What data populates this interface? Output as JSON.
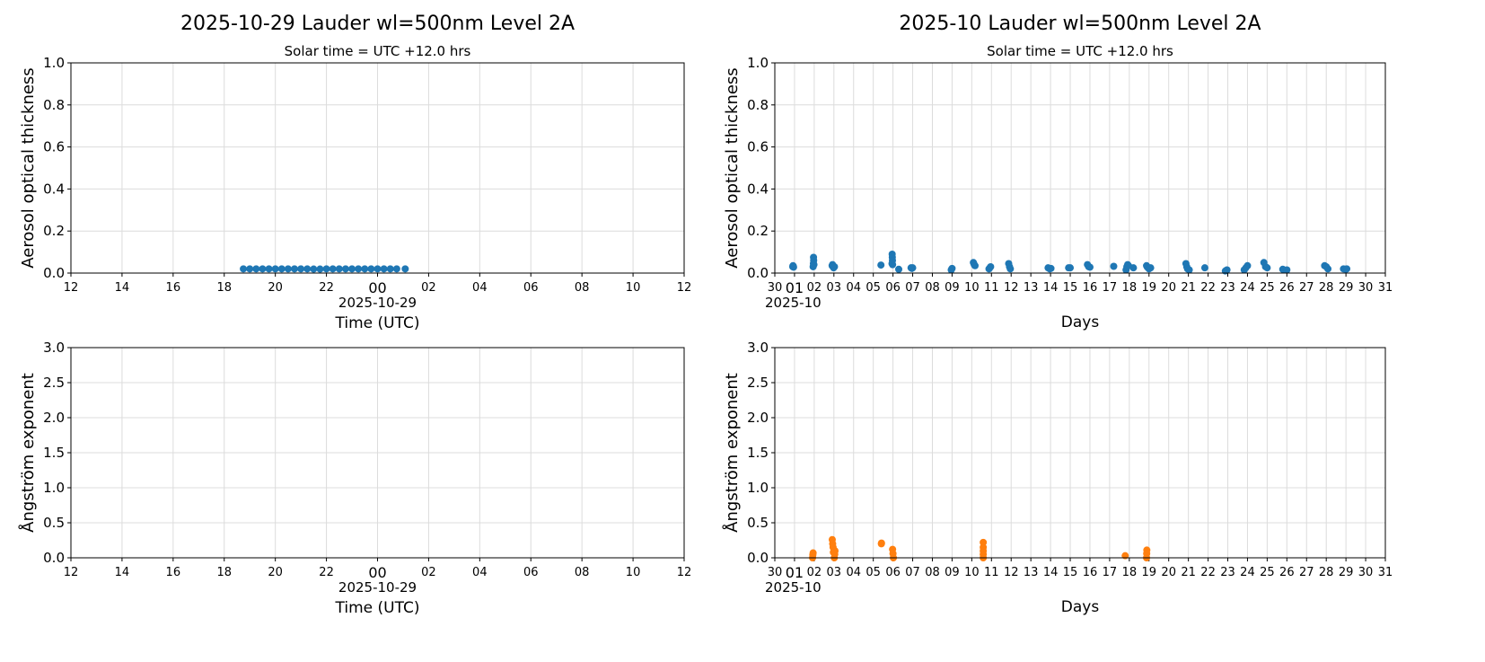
{
  "chart_data": [
    {
      "id": "daily_aot",
      "type": "scatter",
      "title": "2025-10-29  Lauder  wl=500nm  Level 2A",
      "subtitle": "Solar time = UTC +12.0 hrs",
      "xlabel": "Time (UTC)",
      "ylabel": "Aerosol optical thickness",
      "xlim": [
        "2025-10-29T12:00",
        "2025-10-30T12:00"
      ],
      "ylim": [
        0,
        1.0
      ],
      "yticks": [
        "0.0",
        "0.2",
        "0.4",
        "0.6",
        "0.8",
        "1.0"
      ],
      "xticks": [
        "12",
        "14",
        "16",
        "18",
        "20",
        "22",
        "00",
        "02",
        "04",
        "06",
        "08",
        "10",
        "12"
      ],
      "x_offset_label": "2025-10-29",
      "grid": true,
      "color": "#1f77b4",
      "points": [
        [
          "2025-10-29T18:45",
          0.02
        ],
        [
          "2025-10-29T19:00",
          0.02
        ],
        [
          "2025-10-29T19:15",
          0.02
        ],
        [
          "2025-10-29T19:30",
          0.02
        ],
        [
          "2025-10-29T19:45",
          0.02
        ],
        [
          "2025-10-29T20:00",
          0.02
        ],
        [
          "2025-10-29T20:15",
          0.02
        ],
        [
          "2025-10-29T20:30",
          0.02
        ],
        [
          "2025-10-29T20:45",
          0.02
        ],
        [
          "2025-10-29T21:00",
          0.02
        ],
        [
          "2025-10-29T21:15",
          0.02
        ],
        [
          "2025-10-29T21:30",
          0.019
        ],
        [
          "2025-10-29T21:45",
          0.019
        ],
        [
          "2025-10-29T22:00",
          0.02
        ],
        [
          "2025-10-29T22:15",
          0.02
        ],
        [
          "2025-10-29T22:30",
          0.02
        ],
        [
          "2025-10-29T22:45",
          0.02
        ],
        [
          "2025-10-29T23:00",
          0.02
        ],
        [
          "2025-10-29T23:15",
          0.02
        ],
        [
          "2025-10-29T23:30",
          0.02
        ],
        [
          "2025-10-29T23:45",
          0.02
        ],
        [
          "2025-10-30T00:00",
          0.02
        ],
        [
          "2025-10-30T00:15",
          0.02
        ],
        [
          "2025-10-30T00:30",
          0.02
        ],
        [
          "2025-10-30T00:45",
          0.02
        ],
        [
          "2025-10-30T01:05",
          0.02
        ]
      ]
    },
    {
      "id": "monthly_aot",
      "type": "scatter",
      "title": "2025-10  Lauder  wl=500nm  Level 2A",
      "subtitle": "Solar time = UTC +12.0 hrs",
      "xlabel": "Days",
      "ylabel": "Aerosol optical thickness",
      "xlim": [
        "2025-09-30T00:00",
        "2025-10-31T00:00"
      ],
      "ylim": [
        0,
        1.0
      ],
      "yticks": [
        "0.0",
        "0.2",
        "0.4",
        "0.6",
        "0.8",
        "1.0"
      ],
      "xticks": [
        "30",
        "01",
        "02",
        "03",
        "04",
        "05",
        "06",
        "07",
        "08",
        "09",
        "10",
        "11",
        "12",
        "13",
        "14",
        "15",
        "16",
        "17",
        "18",
        "19",
        "20",
        "21",
        "22",
        "23",
        "24",
        "25",
        "26",
        "27",
        "28",
        "29",
        "30",
        "31"
      ],
      "x_offset_label": "2025-10",
      "grid": true,
      "color": "#1f77b4",
      "points": [
        [
          "2025-09-30T21:50",
          0.03
        ],
        [
          "2025-09-30T22:10",
          0.035
        ],
        [
          "2025-09-30T22:30",
          0.032
        ],
        [
          "2025-09-30T22:50",
          0.028
        ],
        [
          "2025-10-01T22:40",
          0.03
        ],
        [
          "2025-10-01T23:00",
          0.045
        ],
        [
          "2025-10-01T23:10",
          0.075
        ],
        [
          "2025-10-01T23:20",
          0.06
        ],
        [
          "2025-10-01T23:40",
          0.04
        ],
        [
          "2025-10-02T21:50",
          0.035
        ],
        [
          "2025-10-02T22:20",
          0.04
        ],
        [
          "2025-10-02T23:00",
          0.03
        ],
        [
          "2025-10-02T23:40",
          0.025
        ],
        [
          "2025-10-03T00:40",
          0.03
        ],
        [
          "2025-10-05T09:20",
          0.038
        ],
        [
          "2025-10-05T22:50",
          0.045
        ],
        [
          "2025-10-05T23:00",
          0.09
        ],
        [
          "2025-10-05T23:10",
          0.075
        ],
        [
          "2025-10-05T23:20",
          0.06
        ],
        [
          "2025-10-05T23:30",
          0.04
        ],
        [
          "2025-10-06T07:00",
          0.018
        ],
        [
          "2025-10-06T22:00",
          0.025
        ],
        [
          "2025-10-06T23:00",
          0.022
        ],
        [
          "2025-10-07T00:00",
          0.025
        ],
        [
          "2025-10-08T23:00",
          0.015
        ],
        [
          "2025-10-09T00:00",
          0.022
        ],
        [
          "2025-10-10T02:00",
          0.05
        ],
        [
          "2025-10-10T03:00",
          0.04
        ],
        [
          "2025-10-10T04:00",
          0.035
        ],
        [
          "2025-10-10T21:00",
          0.02
        ],
        [
          "2025-10-10T22:00",
          0.025
        ],
        [
          "2025-10-10T23:00",
          0.03
        ],
        [
          "2025-10-11T21:00",
          0.045
        ],
        [
          "2025-10-11T22:00",
          0.03
        ],
        [
          "2025-10-11T23:00",
          0.02
        ],
        [
          "2025-10-13T21:00",
          0.025
        ],
        [
          "2025-10-13T23:00",
          0.02
        ],
        [
          "2025-10-14T00:30",
          0.022
        ],
        [
          "2025-10-14T22:00",
          0.025
        ],
        [
          "2025-10-15T00:00",
          0.025
        ],
        [
          "2025-10-15T21:00",
          0.04
        ],
        [
          "2025-10-15T22:30",
          0.03
        ],
        [
          "2025-10-16T00:00",
          0.028
        ],
        [
          "2025-10-17T05:00",
          0.032
        ],
        [
          "2025-10-17T20:00",
          0.015
        ],
        [
          "2025-10-17T21:00",
          0.03
        ],
        [
          "2025-10-17T22:00",
          0.04
        ],
        [
          "2025-10-17T23:00",
          0.035
        ],
        [
          "2025-10-18T05:00",
          0.025
        ],
        [
          "2025-10-18T21:00",
          0.035
        ],
        [
          "2025-10-18T22:00",
          0.028
        ],
        [
          "2025-10-19T00:00",
          0.02
        ],
        [
          "2025-10-19T02:00",
          0.025
        ],
        [
          "2025-10-20T21:00",
          0.045
        ],
        [
          "2025-10-20T22:00",
          0.03
        ],
        [
          "2025-10-20T23:00",
          0.02
        ],
        [
          "2025-10-21T01:00",
          0.015
        ],
        [
          "2025-10-21T20:00",
          0.025
        ],
        [
          "2025-10-22T21:00",
          0.01
        ],
        [
          "2025-10-22T23:00",
          0.015
        ],
        [
          "2025-10-23T20:00",
          0.015
        ],
        [
          "2025-10-23T22:00",
          0.025
        ],
        [
          "2025-10-24T00:00",
          0.035
        ],
        [
          "2025-10-24T20:00",
          0.05
        ],
        [
          "2025-10-24T22:00",
          0.03
        ],
        [
          "2025-10-25T00:00",
          0.025
        ],
        [
          "2025-10-25T19:00",
          0.018
        ],
        [
          "2025-10-26T00:00",
          0.015
        ],
        [
          "2025-10-27T22:00",
          0.035
        ],
        [
          "2025-10-28T00:00",
          0.03
        ],
        [
          "2025-10-28T02:00",
          0.02
        ],
        [
          "2025-10-28T21:00",
          0.02
        ],
        [
          "2025-10-29T00:00",
          0.018
        ],
        [
          "2025-10-29T01:00",
          0.02
        ]
      ]
    },
    {
      "id": "daily_angstrom",
      "type": "scatter",
      "xlabel": "Time (UTC)",
      "ylabel": "Ångström exponent",
      "xlim": [
        "2025-10-29T12:00",
        "2025-10-30T12:00"
      ],
      "ylim": [
        0,
        3.0
      ],
      "yticks": [
        "0.0",
        "0.5",
        "1.0",
        "1.5",
        "2.0",
        "2.5",
        "3.0"
      ],
      "xticks": [
        "12",
        "14",
        "16",
        "18",
        "20",
        "22",
        "00",
        "02",
        "04",
        "06",
        "08",
        "10",
        "12"
      ],
      "x_offset_label": "2025-10-29",
      "grid": true,
      "color": "#ff7f0e",
      "points": []
    },
    {
      "id": "monthly_angstrom",
      "type": "scatter",
      "xlabel": "Days",
      "ylabel": "Ångström exponent",
      "xlim": [
        "2025-09-30T00:00",
        "2025-10-31T00:00"
      ],
      "ylim": [
        0,
        3.0
      ],
      "yticks": [
        "0.0",
        "0.5",
        "1.0",
        "1.5",
        "2.0",
        "2.5",
        "3.0"
      ],
      "xticks": [
        "30",
        "01",
        "02",
        "03",
        "04",
        "05",
        "06",
        "07",
        "08",
        "09",
        "10",
        "11",
        "12",
        "13",
        "14",
        "15",
        "16",
        "17",
        "18",
        "19",
        "20",
        "21",
        "22",
        "23",
        "24",
        "25",
        "26",
        "27",
        "28",
        "29",
        "30",
        "31"
      ],
      "x_offset_label": "2025-10",
      "grid": true,
      "color": "#ff7f0e",
      "points": [
        [
          "2025-10-01T22:00",
          0.0
        ],
        [
          "2025-10-01T22:20",
          0.04
        ],
        [
          "2025-10-01T22:40",
          0.07
        ],
        [
          "2025-10-02T22:00",
          0.26
        ],
        [
          "2025-10-02T22:30",
          0.2
        ],
        [
          "2025-10-02T23:00",
          0.15
        ],
        [
          "2025-10-02T23:20",
          0.08
        ],
        [
          "2025-10-03T00:30",
          0.0
        ],
        [
          "2025-10-03T01:00",
          0.05
        ],
        [
          "2025-10-03T01:20",
          0.1
        ],
        [
          "2025-10-05T09:50",
          0.2
        ],
        [
          "2025-10-05T10:00",
          0.21
        ],
        [
          "2025-10-05T23:30",
          0.12
        ],
        [
          "2025-10-06T00:00",
          0.06
        ],
        [
          "2025-10-06T00:30",
          0.0
        ],
        [
          "2025-10-10T14:00",
          0.0
        ],
        [
          "2025-10-10T14:00",
          0.05
        ],
        [
          "2025-10-10T14:00",
          0.1
        ],
        [
          "2025-10-10T14:00",
          0.15
        ],
        [
          "2025-10-10T14:00",
          0.22
        ],
        [
          "2025-10-17T19:00",
          0.03
        ],
        [
          "2025-10-18T21:00",
          0.0
        ],
        [
          "2025-10-18T21:10",
          0.06
        ],
        [
          "2025-10-18T21:20",
          0.11
        ]
      ]
    }
  ]
}
